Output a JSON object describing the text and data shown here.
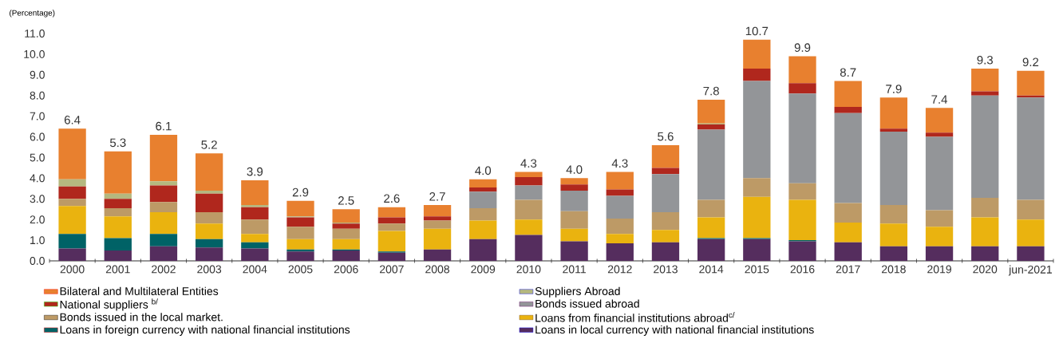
{
  "chart_data": {
    "type": "bar",
    "stacked": true,
    "ylabel": "(Percentage)",
    "legend": "bottom",
    "categories": [
      "2000",
      "2001",
      "2002",
      "2003",
      "2004",
      "2005",
      "2006",
      "2007",
      "2008",
      "2009",
      "2010",
      "2011",
      "2012",
      "2013",
      "2014",
      "2015",
      "2016",
      "2017",
      "2018",
      "2019",
      "2020",
      "jun-2021"
    ],
    "ylim": [
      0,
      11
    ],
    "yticks": [
      {
        "value": 0,
        "label": "0.0"
      },
      {
        "value": 1,
        "label": "1.0"
      },
      {
        "value": 2,
        "label": "2.0"
      },
      {
        "value": 3,
        "label": "3.0"
      },
      {
        "value": 4,
        "label": "4.0"
      },
      {
        "value": 5,
        "label": "5.0"
      },
      {
        "value": 6,
        "label": "6.0"
      },
      {
        "value": 7,
        "label": "7.0"
      },
      {
        "value": 8,
        "label": "8.0"
      },
      {
        "value": 9,
        "label": "9.0"
      },
      {
        "value": 10,
        "label": "10.0"
      },
      {
        "value": 11,
        "label": "11.0"
      }
    ],
    "series": [
      {
        "name": "Loans in local currency with national financial institutions",
        "color": "#552d5e",
        "values": [
          0.6,
          0.5,
          0.7,
          0.65,
          0.6,
          0.45,
          0.5,
          0.4,
          0.55,
          1.05,
          1.25,
          0.95,
          0.85,
          0.9,
          1.05,
          1.05,
          0.95,
          0.9,
          0.7,
          0.7,
          0.7,
          0.7
        ]
      },
      {
        "name": "Loans in foreign currency with national financial institutions",
        "color": "#006266",
        "values": [
          0.7,
          0.6,
          0.6,
          0.4,
          0.3,
          0.1,
          0.05,
          0.05,
          null,
          null,
          null,
          null,
          null,
          null,
          0.05,
          0.05,
          0.05,
          null,
          null,
          null,
          null,
          null
        ]
      },
      {
        "name": "Loans from financial institutions abroad$^{c/}$",
        "color": "#eab30f",
        "values": [
          1.35,
          1.05,
          1.05,
          0.75,
          0.4,
          0.5,
          0.5,
          1.0,
          1.0,
          0.9,
          0.75,
          0.6,
          0.45,
          0.6,
          1.0,
          2.0,
          1.95,
          0.95,
          1.1,
          0.95,
          1.4,
          1.3
        ]
      },
      {
        "name": "Bonds issued in the local market.",
        "color": "#bd9a66",
        "values": [
          0.35,
          0.4,
          0.5,
          0.55,
          0.7,
          0.6,
          0.5,
          0.35,
          0.4,
          0.6,
          0.95,
          0.85,
          0.75,
          0.85,
          0.85,
          0.9,
          0.8,
          0.95,
          0.9,
          0.8,
          0.95,
          0.95
        ]
      },
      {
        "name": "Bonds issued abroad",
        "color": "#939598",
        "values": [
          null,
          null,
          null,
          null,
          null,
          null,
          null,
          null,
          null,
          0.8,
          0.7,
          1.0,
          1.1,
          1.85,
          3.4,
          4.7,
          4.35,
          4.35,
          3.55,
          3.55,
          4.95,
          4.95
        ]
      },
      {
        "name": "National suppliers $^{b/}$",
        "color": "#b0271d",
        "values": [
          0.6,
          0.45,
          0.8,
          0.9,
          0.6,
          0.45,
          0.25,
          0.3,
          0.2,
          0.2,
          0.4,
          0.3,
          0.3,
          0.3,
          0.25,
          0.6,
          0.5,
          0.3,
          0.15,
          0.2,
          0.2,
          0.1
        ]
      },
      {
        "name": "Suppliers Abroad",
        "color": "#b5b87f",
        "values": [
          0.35,
          0.25,
          0.2,
          0.15,
          0.1,
          0.05,
          0.05,
          null,
          null,
          null,
          null,
          null,
          null,
          null,
          0.05,
          null,
          null,
          null,
          null,
          null,
          null,
          null
        ]
      },
      {
        "name": "Bilateral and Multilateral Entities",
        "color": "#e8802f",
        "values": [
          2.45,
          2.05,
          2.25,
          1.8,
          1.2,
          0.75,
          0.65,
          0.5,
          0.55,
          0.4,
          0.25,
          0.3,
          0.85,
          1.1,
          1.15,
          1.4,
          1.3,
          1.25,
          1.5,
          1.2,
          1.1,
          1.2
        ]
      }
    ],
    "totals": [
      "6.4",
      "5.3",
      "6.1",
      "5.2",
      "3.9",
      "2.9",
      "2.5",
      "2.6",
      "2.7",
      "4.0",
      "4.3",
      "4.0",
      "4.3",
      "5.6",
      "7.8",
      "10.7",
      "9.9",
      "8.7",
      "7.9",
      "7.4",
      "9.3",
      "9.2"
    ]
  }
}
